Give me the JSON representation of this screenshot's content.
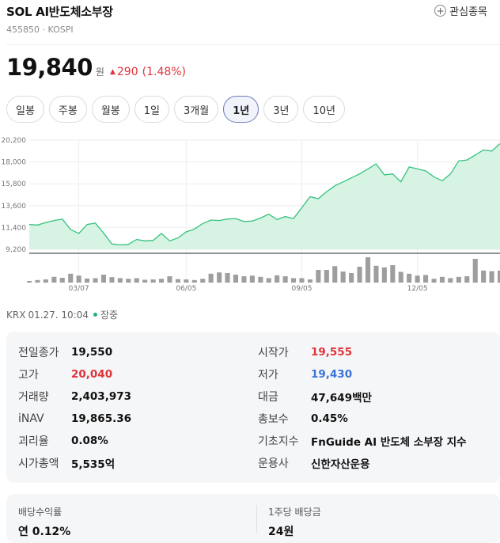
{
  "header": {
    "title": "SOL AI반도체소부장",
    "code": "455850",
    "market": "KOSPI",
    "watch_label": "관심종목"
  },
  "price": {
    "current": "19,840",
    "unit": "원",
    "change": "290",
    "change_pct": "(1.48%)",
    "direction": "up",
    "up_color": "#e0333a"
  },
  "tabs": [
    {
      "label": "일봉",
      "active": false
    },
    {
      "label": "주봉",
      "active": false
    },
    {
      "label": "월봉",
      "active": false
    },
    {
      "label": "1일",
      "active": false
    },
    {
      "label": "3개월",
      "active": false
    },
    {
      "label": "1년",
      "active": true
    },
    {
      "label": "3년",
      "active": false
    },
    {
      "label": "10년",
      "active": false
    }
  ],
  "chart_data": {
    "type": "area",
    "line_color": "#36c27f",
    "fill_color": "#d6f3e3",
    "y_ticks": [
      "20,200",
      "18,000",
      "15,800",
      "13,600",
      "11,400",
      "9,200"
    ],
    "y_tick_values": [
      20200,
      18000,
      15800,
      13600,
      11400,
      9200
    ],
    "ylim": [
      9200,
      20200
    ],
    "x_ticks": [
      "03/07",
      "06/05",
      "09/05",
      "12/05"
    ],
    "x_tick_index": [
      6,
      19,
      33,
      47
    ],
    "values": [
      11700,
      11650,
      11900,
      12100,
      12250,
      11200,
      10800,
      11700,
      11850,
      10850,
      9750,
      9650,
      9700,
      10200,
      10050,
      10100,
      10800,
      10050,
      10350,
      10950,
      11250,
      11800,
      12150,
      12100,
      12250,
      12300,
      12000,
      12050,
      12350,
      12750,
      12200,
      12500,
      12300,
      13400,
      14500,
      14300,
      15000,
      15600,
      16000,
      16400,
      16800,
      17300,
      17800,
      16700,
      16800,
      16000,
      17500,
      17300,
      17100,
      16500,
      16100,
      16800,
      18100,
      18200,
      18700,
      19200,
      19100,
      19840
    ],
    "volumes": [
      5,
      8,
      10,
      18,
      15,
      28,
      22,
      13,
      14,
      25,
      17,
      14,
      12,
      14,
      9,
      10,
      12,
      20,
      11,
      10,
      8,
      12,
      28,
      32,
      30,
      25,
      20,
      22,
      18,
      14,
      23,
      20,
      14,
      14,
      10,
      40,
      40,
      52,
      35,
      30,
      50,
      80,
      53,
      48,
      55,
      34,
      28,
      22,
      24,
      12,
      18,
      14,
      18,
      20,
      75,
      38,
      36,
      38
    ],
    "volume_color": "#9e9e9e"
  },
  "market_status": {
    "exchange": "KRX",
    "datetime": "01.27. 10:04",
    "status": "장중"
  },
  "info": {
    "left": [
      {
        "label": "전일종가",
        "value": "19,550",
        "tone": "normal"
      },
      {
        "label": "고가",
        "value": "20,040",
        "tone": "red"
      },
      {
        "label": "거래량",
        "value": "2,403,973",
        "tone": "normal"
      },
      {
        "label": "iNAV",
        "value": "19,865.36",
        "tone": "normal"
      },
      {
        "label": "괴리율",
        "value": "0.08%",
        "tone": "normal"
      },
      {
        "label": "시가총액",
        "value": "5,535억",
        "tone": "normal"
      }
    ],
    "right": [
      {
        "label": "시작가",
        "value": "19,555",
        "tone": "red"
      },
      {
        "label": "저가",
        "value": "19,430",
        "tone": "blue"
      },
      {
        "label": "대금",
        "value": "47,649백만",
        "tone": "normal"
      },
      {
        "label": "총보수",
        "value": "0.45%",
        "tone": "normal"
      },
      {
        "label": "기초지수",
        "value": "FnGuide AI 반도체 소부장 지수",
        "tone": "normal"
      },
      {
        "label": "운용사",
        "value": "신한자산운용",
        "tone": "normal"
      }
    ]
  },
  "dividend": {
    "yield_label": "배당수익률",
    "yield_value": "연 0.12%",
    "per_share_label": "1주당 배당금",
    "per_share_value": "24원"
  }
}
